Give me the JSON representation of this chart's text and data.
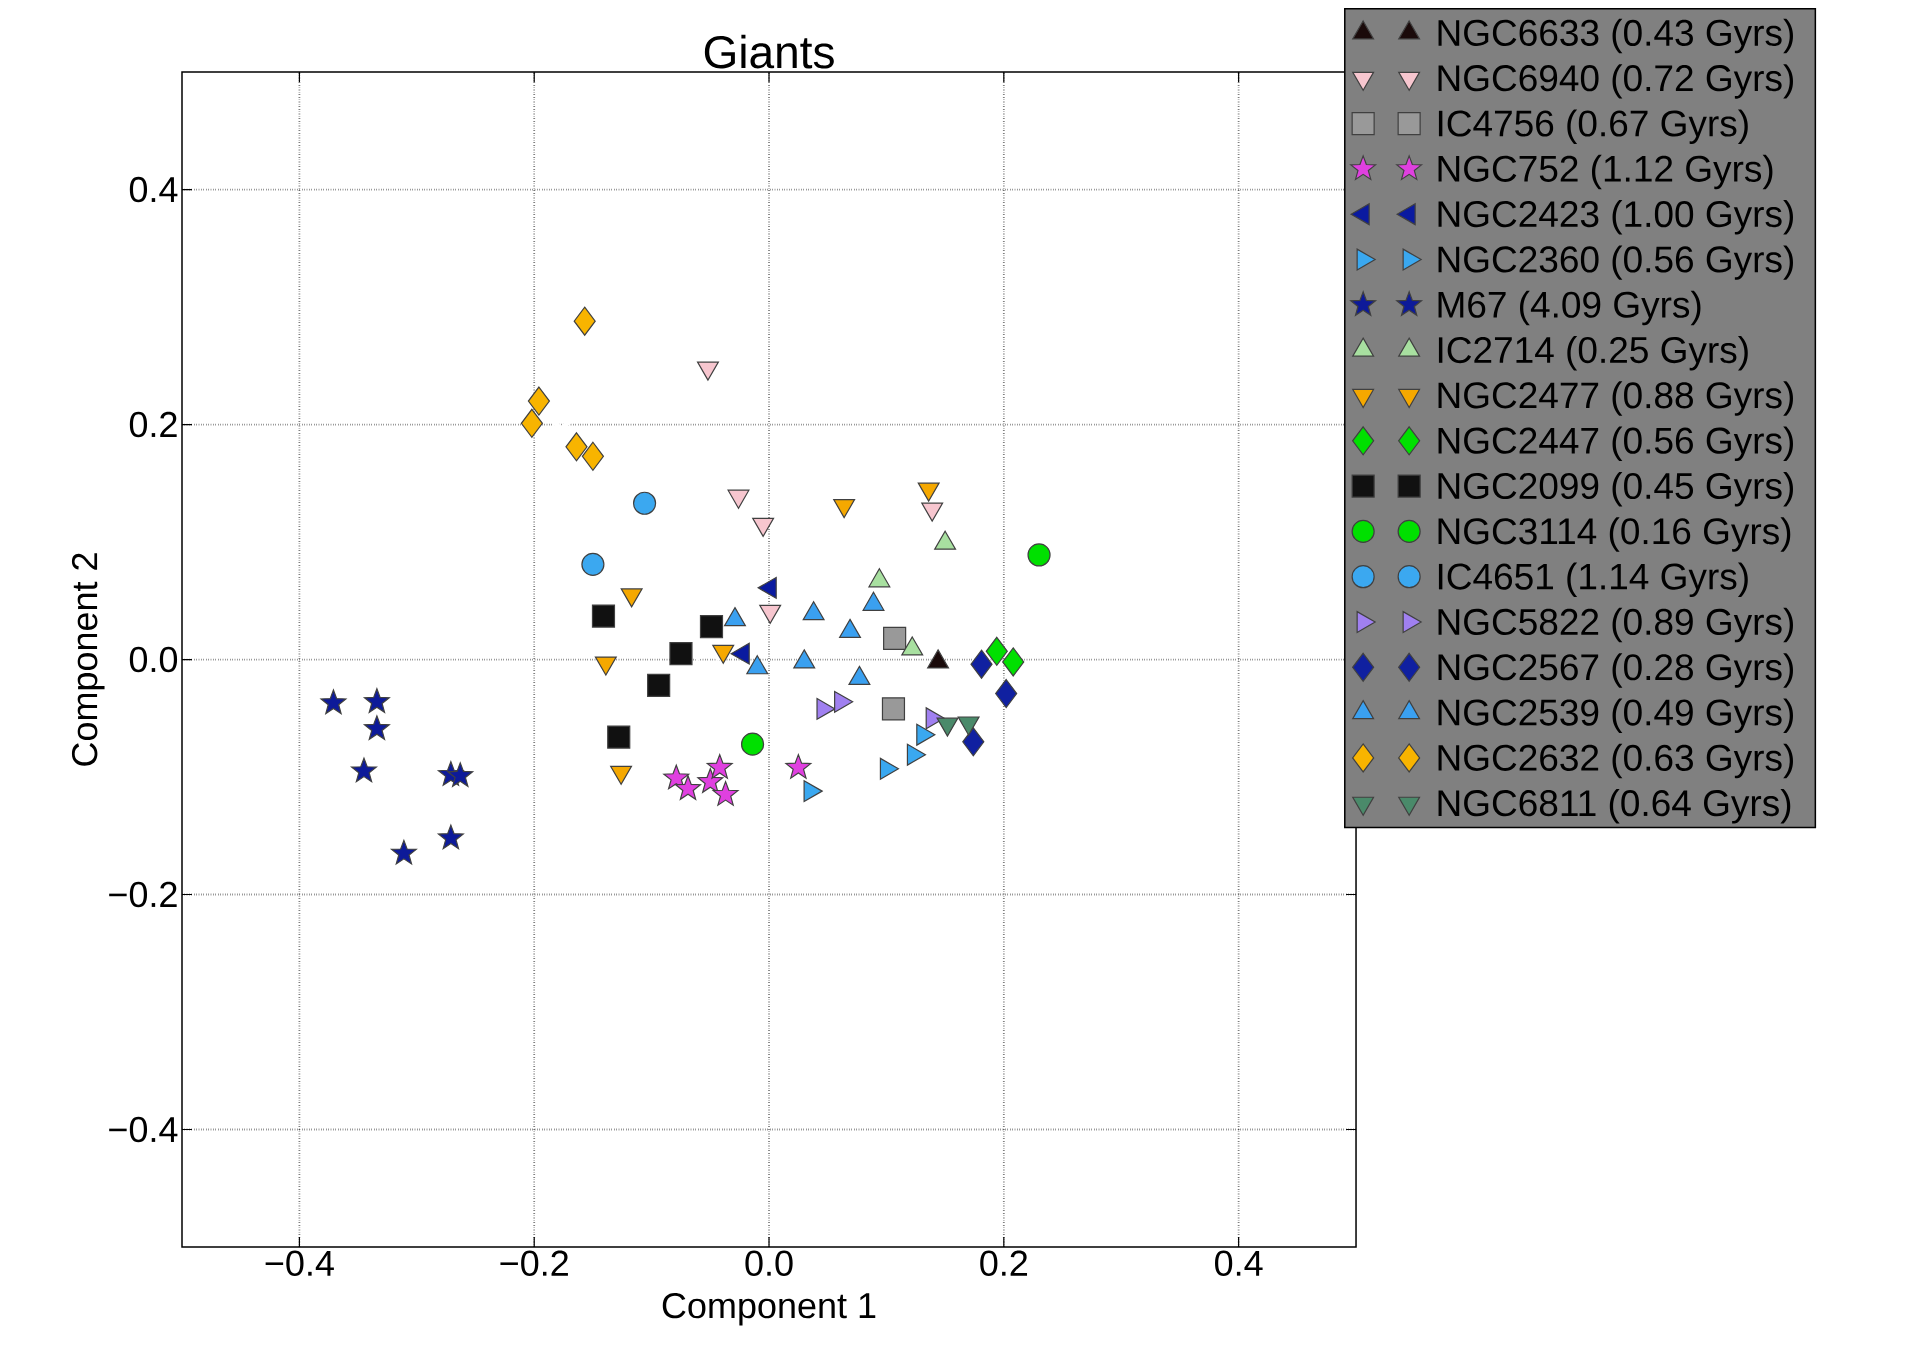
{
  "chart_data": {
    "type": "scatter",
    "title": "Giants",
    "xlabel": "Component 1",
    "ylabel": "Component 2",
    "xlim": [
      -0.5,
      0.5
    ],
    "ylim": [
      -0.5,
      0.5
    ],
    "xticks": [
      {
        "value": -0.4,
        "label": "−0.4"
      },
      {
        "value": -0.2,
        "label": "−0.2"
      },
      {
        "value": 0,
        "label": "0.0"
      },
      0.2,
      0.4
    ],
    "yticks": [
      {
        "value": -0.4,
        "label": "−0.4"
      },
      {
        "value": -0.2,
        "label": "−0.2"
      },
      {
        "value": 0,
        "label": "0.0"
      },
      0.2,
      0.4
    ],
    "grid": true,
    "legend": "right",
    "series": [
      {
        "color": "#ffffff",
        "marker": "cross",
        "x": [
          -0.157,
          -0.052,
          -0.177,
          -0.047,
          0.118,
          0.23,
          -0.139,
          -0.052,
          0.021,
          0.097,
          0.185,
          -0.141,
          -0.07,
          0.026,
          0.152,
          -0.351,
          -0.283
        ],
        "values": [
          0.286,
          0.246,
          0.196,
          0.128,
          0.12,
          0.089,
          0.037,
          0.01,
          0.031,
          0.037,
          0.013,
          -0.081,
          -0.099,
          -0.073,
          -0.068,
          -0.063,
          -0.128
        ]
      },
      {
        "name": "NGC6633 (0.43 Gyrs)",
        "color": "#1a0a0a",
        "marker": "triangle",
        "x": [
          0.144
        ],
        "values": [
          -0.002
        ]
      },
      {
        "name": "NGC6940 (0.72 Gyrs)",
        "color": "#f7c6cf",
        "marker": "triangle-down",
        "x": [
          -0.052,
          -0.026,
          -0.005,
          0.139,
          0.001
        ],
        "values": [
          0.248,
          0.139,
          0.115,
          0.128,
          0.041
        ]
      },
      {
        "name": "IC4756 (0.67 Gyrs)",
        "color": "#999999",
        "marker": "square",
        "x": [
          0.107,
          0.106
        ],
        "values": [
          0.018,
          -0.042
        ]
      },
      {
        "name": "NGC752 (1.12 Gyrs)",
        "color": "#e040e0",
        "marker": "star",
        "x": [
          -0.079,
          -0.069,
          -0.05,
          -0.042,
          -0.037,
          0.025
        ],
        "values": [
          -0.101,
          -0.11,
          -0.104,
          -0.092,
          -0.115,
          -0.092
        ]
      },
      {
        "name": "NGC2423 (1.00 Gyrs)",
        "color": "#0a1aa0",
        "marker": "triangle-left",
        "x": [
          0.001,
          -0.022
        ],
        "values": [
          0.061,
          0.005
        ]
      },
      {
        "name": "NGC2360 (0.56 Gyrs)",
        "color": "#3aa8f0",
        "marker": "triangle-right",
        "x": [
          0.035,
          0.1,
          0.123,
          0.131
        ],
        "values": [
          -0.112,
          -0.093,
          -0.081,
          -0.064
        ]
      },
      {
        "name": "M67 (4.09 Gyrs)",
        "color": "#0d1a99",
        "marker": "star",
        "x": [
          -0.371,
          -0.334,
          -0.334,
          -0.345,
          -0.271,
          -0.263,
          -0.271,
          -0.311
        ],
        "values": [
          -0.037,
          -0.036,
          -0.059,
          -0.095,
          -0.098,
          -0.099,
          -0.152,
          -0.165
        ]
      },
      {
        "name": "IC2714 (0.25 Gyrs)",
        "color": "#a8e0a0",
        "marker": "triangle",
        "x": [
          0.15,
          0.094,
          0.122
        ],
        "values": [
          0.099,
          0.067,
          0.009
        ]
      },
      {
        "name": "NGC2477 (0.88 Gyrs)",
        "color": "#f5a800",
        "marker": "triangle-down",
        "x": [
          -0.117,
          -0.139,
          -0.126,
          0.064,
          0.136,
          -0.039
        ],
        "values": [
          0.055,
          -0.003,
          -0.096,
          0.131,
          0.145,
          0.007
        ]
      },
      {
        "name": "NGC2447 (0.56 Gyrs)",
        "color": "#00e000",
        "marker": "diamond",
        "x": [
          0.194,
          0.208
        ],
        "values": [
          0.007,
          -0.002
        ]
      },
      {
        "name": "NGC2099 (0.45 Gyrs)",
        "color": "#111111",
        "marker": "square",
        "x": [
          -0.141,
          -0.049,
          -0.075,
          -0.094,
          -0.128
        ],
        "values": [
          0.037,
          0.028,
          0.005,
          -0.022,
          -0.066
        ]
      },
      {
        "name": "NGC3114 (0.16 Gyrs)",
        "color": "#00e000",
        "marker": "circle",
        "x": [
          0.23,
          -0.014
        ],
        "values": [
          0.089,
          -0.072
        ]
      },
      {
        "name": "IC4651 (1.14 Gyrs)",
        "color": "#3ba8f0",
        "marker": "circle",
        "x": [
          -0.106,
          -0.15
        ],
        "values": [
          0.133,
          0.081
        ]
      },
      {
        "name": "NGC5822 (0.89 Gyrs)",
        "color": "#a080f0",
        "marker": "triangle-right",
        "x": [
          0.046,
          0.061,
          0.139
        ],
        "values": [
          -0.042,
          -0.036,
          -0.05
        ]
      },
      {
        "name": "NGC2567 (0.28 Gyrs)",
        "color": "#1020a0",
        "marker": "diamond",
        "x": [
          0.181,
          0.202,
          0.174
        ],
        "values": [
          -0.004,
          -0.029,
          -0.07
        ]
      },
      {
        "name": "NGC2539 (0.49 Gyrs)",
        "color": "#3aa0f0",
        "marker": "triangle",
        "x": [
          -0.029,
          -0.01,
          0.038,
          0.03,
          0.069,
          0.089,
          0.077
        ],
        "values": [
          0.034,
          -0.007,
          0.039,
          -0.002,
          0.024,
          0.047,
          -0.016
        ]
      },
      {
        "name": "NGC2632 (0.63 Gyrs)",
        "color": "#f8b400",
        "marker": "diamond",
        "x": [
          -0.157,
          -0.196,
          -0.202,
          -0.164,
          -0.15
        ],
        "values": [
          0.288,
          0.22,
          0.201,
          0.181,
          0.173
        ]
      },
      {
        "name": "NGC6811 (0.64 Gyrs)",
        "color": "#4a8a6a",
        "marker": "triangle-down",
        "x": [
          0.152,
          0.17
        ],
        "values": [
          -0.055,
          -0.054
        ]
      }
    ]
  }
}
